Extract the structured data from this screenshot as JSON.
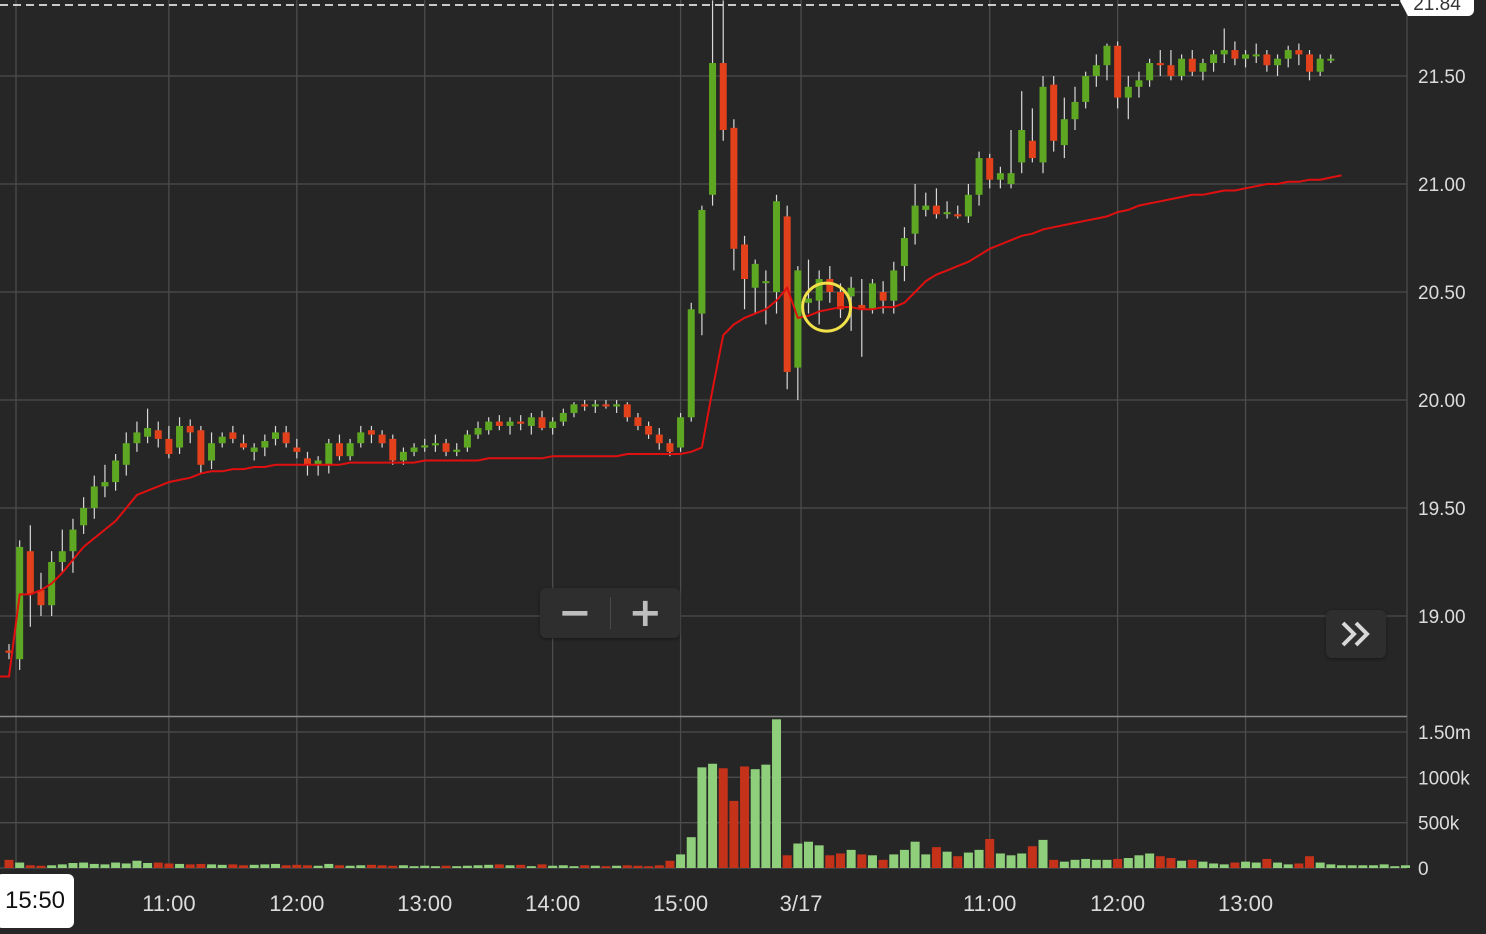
{
  "price_axis": {
    "ticks": [
      {
        "value": 21.5,
        "label": "21.50"
      },
      {
        "value": 21.0,
        "label": "21.00"
      },
      {
        "value": 20.5,
        "label": "20.50"
      },
      {
        "value": 20.0,
        "label": "20.00"
      },
      {
        "value": 19.5,
        "label": "19.50"
      },
      {
        "value": 19.0,
        "label": "19.00"
      }
    ],
    "current_price_label": "21.84"
  },
  "volume_axis": {
    "ticks": [
      {
        "value": 1500000,
        "label": "1.50m"
      },
      {
        "value": 1000000,
        "label": "1000k"
      },
      {
        "value": 500000,
        "label": "500k"
      },
      {
        "value": 0,
        "label": "0"
      }
    ]
  },
  "time_axis": {
    "cursor_label": "15:50",
    "labels": [
      {
        "label": "11:00",
        "slot": 15
      },
      {
        "label": "12:00",
        "slot": 27
      },
      {
        "label": "13:00",
        "slot": 39
      },
      {
        "label": "14:00",
        "slot": 51
      },
      {
        "label": "15:00",
        "slot": 63
      },
      {
        "label": "3/17",
        "slot": 74.3
      },
      {
        "label": "11:00",
        "slot": 92
      },
      {
        "label": "12:00",
        "slot": 104
      },
      {
        "label": "13:00",
        "slot": 116
      }
    ]
  },
  "controls": {
    "zoom_out": "−",
    "zoom_in": "+"
  },
  "colors": {
    "up": "#5ea722",
    "down": "#e2411b",
    "vol_up": "#8fcf7c",
    "vol_down": "#c4321a",
    "vwap": "#e01010",
    "grid": "#4c4c4c",
    "highlight_circle": "#f0e04a"
  },
  "chart_data": {
    "type": "candlestick",
    "price_range": [
      18.5,
      21.85
    ],
    "volume_range": [
      0,
      1650000
    ],
    "grid": true,
    "highlight": {
      "slot": 76.7,
      "price": 20.43
    },
    "candles": [
      [
        18.84,
        18.87,
        18.8,
        18.83
      ],
      [
        18.8,
        19.35,
        18.75,
        19.32
      ],
      [
        19.3,
        19.42,
        18.95,
        19.1
      ],
      [
        19.12,
        19.2,
        19.0,
        19.05
      ],
      [
        19.05,
        19.3,
        19.0,
        19.25
      ],
      [
        19.25,
        19.4,
        19.2,
        19.3
      ],
      [
        19.3,
        19.45,
        19.2,
        19.4
      ],
      [
        19.42,
        19.55,
        19.38,
        19.5
      ],
      [
        19.5,
        19.65,
        19.45,
        19.6
      ],
      [
        19.6,
        19.7,
        19.55,
        19.62
      ],
      [
        19.62,
        19.75,
        19.58,
        19.72
      ],
      [
        19.7,
        19.85,
        19.65,
        19.8
      ],
      [
        19.8,
        19.9,
        19.76,
        19.85
      ],
      [
        19.83,
        19.96,
        19.8,
        19.87
      ],
      [
        19.86,
        19.9,
        19.78,
        19.82
      ],
      [
        19.82,
        19.88,
        19.73,
        19.75
      ],
      [
        19.78,
        19.92,
        19.75,
        19.88
      ],
      [
        19.88,
        19.91,
        19.8,
        19.85
      ],
      [
        19.86,
        19.88,
        19.66,
        19.7
      ],
      [
        19.72,
        19.85,
        19.68,
        19.8
      ],
      [
        19.8,
        19.85,
        19.78,
        19.83
      ],
      [
        19.85,
        19.88,
        19.8,
        19.82
      ],
      [
        19.8,
        19.84,
        19.77,
        19.78
      ],
      [
        19.76,
        19.8,
        19.72,
        19.78
      ],
      [
        19.78,
        19.84,
        19.74,
        19.81
      ],
      [
        19.82,
        19.88,
        19.79,
        19.85
      ],
      [
        19.85,
        19.88,
        19.78,
        19.8
      ],
      [
        19.78,
        19.82,
        19.73,
        19.76
      ],
      [
        19.73,
        19.76,
        19.65,
        19.7
      ],
      [
        19.7,
        19.74,
        19.65,
        19.72
      ],
      [
        19.7,
        19.82,
        19.66,
        19.8
      ],
      [
        19.8,
        19.84,
        19.72,
        19.74
      ],
      [
        19.74,
        19.82,
        19.72,
        19.8
      ],
      [
        19.8,
        19.88,
        19.78,
        19.85
      ],
      [
        19.86,
        19.88,
        19.8,
        19.84
      ],
      [
        19.84,
        19.86,
        19.78,
        19.8
      ],
      [
        19.82,
        19.84,
        19.7,
        19.72
      ],
      [
        19.72,
        19.78,
        19.7,
        19.76
      ],
      [
        19.76,
        19.8,
        19.74,
        19.78
      ],
      [
        19.78,
        19.82,
        19.76,
        19.79
      ],
      [
        19.79,
        19.84,
        19.76,
        19.8
      ],
      [
        19.8,
        19.82,
        19.74,
        19.76
      ],
      [
        19.76,
        19.8,
        19.74,
        19.77
      ],
      [
        19.78,
        19.86,
        19.76,
        19.84
      ],
      [
        19.84,
        19.9,
        19.82,
        19.87
      ],
      [
        19.86,
        19.92,
        19.84,
        19.9
      ],
      [
        19.9,
        19.93,
        19.86,
        19.88
      ],
      [
        19.88,
        19.92,
        19.84,
        19.9
      ],
      [
        19.9,
        19.93,
        19.86,
        19.89
      ],
      [
        19.88,
        19.94,
        19.84,
        19.92
      ],
      [
        19.92,
        19.95,
        19.86,
        19.87
      ],
      [
        19.87,
        19.92,
        19.84,
        19.9
      ],
      [
        19.9,
        19.96,
        19.88,
        19.94
      ],
      [
        19.94,
        19.99,
        19.92,
        19.98
      ],
      [
        19.98,
        20.0,
        19.95,
        19.97
      ],
      [
        19.97,
        20.0,
        19.94,
        19.98
      ],
      [
        19.98,
        20.0,
        19.96,
        19.97
      ],
      [
        19.97,
        20.0,
        19.94,
        19.98
      ],
      [
        19.98,
        19.99,
        19.9,
        19.92
      ],
      [
        19.92,
        19.94,
        19.86,
        19.88
      ],
      [
        19.88,
        19.9,
        19.82,
        19.84
      ],
      [
        19.84,
        19.87,
        19.77,
        19.8
      ],
      [
        19.8,
        19.82,
        19.74,
        19.76
      ],
      [
        19.78,
        19.94,
        19.76,
        19.92
      ],
      [
        19.92,
        20.45,
        19.9,
        20.42
      ],
      [
        20.4,
        20.9,
        20.3,
        20.88
      ],
      [
        20.95,
        21.85,
        20.9,
        21.56
      ],
      [
        21.56,
        21.85,
        21.2,
        21.25
      ],
      [
        21.26,
        21.3,
        20.6,
        20.7
      ],
      [
        20.72,
        20.76,
        20.42,
        20.56
      ],
      [
        20.52,
        20.65,
        20.4,
        20.63
      ],
      [
        20.55,
        20.6,
        20.35,
        20.55
      ],
      [
        20.5,
        20.95,
        20.4,
        20.92
      ],
      [
        20.85,
        20.9,
        20.05,
        20.13
      ],
      [
        20.15,
        20.62,
        20.0,
        20.6
      ],
      [
        20.45,
        20.65,
        20.4,
        20.47
      ],
      [
        20.46,
        20.6,
        20.35,
        20.56
      ],
      [
        20.56,
        20.62,
        20.45,
        20.5
      ],
      [
        20.5,
        20.54,
        20.38,
        20.42
      ],
      [
        20.48,
        20.57,
        20.32,
        20.52
      ],
      [
        20.44,
        20.56,
        20.2,
        20.42
      ],
      [
        20.42,
        20.56,
        20.4,
        20.54
      ],
      [
        20.5,
        20.55,
        20.4,
        20.46
      ],
      [
        20.46,
        20.64,
        20.4,
        20.6
      ],
      [
        20.62,
        20.8,
        20.55,
        20.75
      ],
      [
        20.77,
        21.0,
        20.72,
        20.9
      ],
      [
        20.88,
        20.96,
        20.85,
        20.9
      ],
      [
        20.9,
        20.98,
        20.84,
        20.86
      ],
      [
        20.86,
        20.92,
        20.84,
        20.87
      ],
      [
        20.86,
        20.9,
        20.84,
        20.85
      ],
      [
        20.85,
        21.0,
        20.82,
        20.95
      ],
      [
        20.95,
        21.15,
        20.9,
        21.12
      ],
      [
        21.12,
        21.14,
        20.98,
        21.02
      ],
      [
        21.02,
        21.08,
        20.98,
        21.05
      ],
      [
        21.0,
        21.25,
        20.98,
        21.05
      ],
      [
        21.1,
        21.43,
        21.05,
        21.25
      ],
      [
        21.2,
        21.35,
        21.1,
        21.12
      ],
      [
        21.1,
        21.5,
        21.05,
        21.45
      ],
      [
        21.46,
        21.5,
        21.15,
        21.2
      ],
      [
        21.18,
        21.4,
        21.12,
        21.3
      ],
      [
        21.3,
        21.45,
        21.25,
        21.38
      ],
      [
        21.38,
        21.52,
        21.35,
        21.5
      ],
      [
        21.5,
        21.6,
        21.45,
        21.55
      ],
      [
        21.55,
        21.65,
        21.48,
        21.64
      ],
      [
        21.64,
        21.66,
        21.35,
        21.4
      ],
      [
        21.4,
        21.5,
        21.3,
        21.45
      ],
      [
        21.45,
        21.52,
        21.4,
        21.48
      ],
      [
        21.48,
        21.58,
        21.45,
        21.56
      ],
      [
        21.56,
        21.62,
        21.5,
        21.55
      ],
      [
        21.55,
        21.62,
        21.48,
        21.5
      ],
      [
        21.5,
        21.6,
        21.48,
        21.58
      ],
      [
        21.58,
        21.62,
        21.5,
        21.52
      ],
      [
        21.52,
        21.58,
        21.48,
        21.56
      ],
      [
        21.56,
        21.62,
        21.52,
        21.6
      ],
      [
        21.6,
        21.72,
        21.56,
        21.62
      ],
      [
        21.62,
        21.66,
        21.55,
        21.58
      ],
      [
        21.58,
        21.62,
        21.54,
        21.6
      ],
      [
        21.6,
        21.65,
        21.56,
        21.6
      ],
      [
        21.6,
        21.62,
        21.52,
        21.55
      ],
      [
        21.55,
        21.6,
        21.5,
        21.58
      ],
      [
        21.58,
        21.64,
        21.54,
        21.62
      ],
      [
        21.62,
        21.65,
        21.55,
        21.6
      ],
      [
        21.6,
        21.62,
        21.48,
        21.52
      ],
      [
        21.52,
        21.6,
        21.5,
        21.58
      ],
      [
        21.58,
        21.6,
        21.56,
        21.58
      ]
    ],
    "volumes": [
      90000,
      60000,
      30000,
      25000,
      30000,
      40000,
      55000,
      60000,
      45000,
      40000,
      60000,
      50000,
      80000,
      55000,
      60000,
      50000,
      45000,
      40000,
      45000,
      40000,
      35000,
      40000,
      30000,
      35000,
      40000,
      45000,
      30000,
      35000,
      30000,
      25000,
      45000,
      30000,
      25000,
      30000,
      35000,
      30000,
      25000,
      30000,
      20000,
      25000,
      20000,
      25000,
      20000,
      25000,
      30000,
      35000,
      40000,
      30000,
      35000,
      20000,
      40000,
      25000,
      30000,
      20000,
      30000,
      25000,
      20000,
      25000,
      30000,
      25000,
      20000,
      30000,
      80000,
      150000,
      340000,
      1110000,
      1150000,
      1100000,
      740000,
      1120000,
      1090000,
      1140000,
      1640000,
      140000,
      270000,
      290000,
      250000,
      140000,
      160000,
      200000,
      150000,
      140000,
      90000,
      150000,
      200000,
      290000,
      150000,
      230000,
      180000,
      130000,
      170000,
      200000,
      320000,
      160000,
      140000,
      160000,
      240000,
      310000,
      90000,
      70000,
      90000,
      100000,
      90000,
      90000,
      100000,
      110000,
      140000,
      160000,
      130000,
      110000,
      80000,
      90000,
      70000,
      50000,
      40000,
      60000,
      70000,
      60000,
      100000,
      60000,
      40000,
      50000,
      130000,
      60000,
      40000,
      30000,
      30000,
      30000,
      30000,
      40000,
      20000,
      30000
    ],
    "vwap": [
      18.72,
      19.1,
      19.1,
      19.12,
      19.15,
      19.2,
      19.26,
      19.32,
      19.36,
      19.4,
      19.44,
      19.5,
      19.56,
      19.58,
      19.6,
      19.62,
      19.63,
      19.64,
      19.66,
      19.67,
      19.67,
      19.68,
      19.68,
      19.69,
      19.69,
      19.7,
      19.7,
      19.7,
      19.7,
      19.7,
      19.7,
      19.7,
      19.71,
      19.71,
      19.71,
      19.71,
      19.71,
      19.71,
      19.71,
      19.72,
      19.72,
      19.72,
      19.72,
      19.72,
      19.72,
      19.73,
      19.73,
      19.73,
      19.73,
      19.73,
      19.73,
      19.74,
      19.74,
      19.74,
      19.74,
      19.74,
      19.74,
      19.74,
      19.75,
      19.75,
      19.75,
      19.75,
      19.75,
      19.75,
      19.76,
      19.78,
      20.05,
      20.3,
      20.35,
      20.38,
      20.4,
      20.42,
      20.46,
      20.52,
      20.38,
      20.39,
      20.41,
      20.42,
      20.43,
      20.43,
      20.42,
      20.42,
      20.43,
      20.43,
      20.45,
      20.5,
      20.55,
      20.58,
      20.6,
      20.62,
      20.64,
      20.67,
      20.7,
      20.72,
      20.74,
      20.76,
      20.77,
      20.79,
      20.8,
      20.81,
      20.82,
      20.83,
      20.84,
      20.85,
      20.87,
      20.88,
      20.9,
      20.91,
      20.92,
      20.93,
      20.94,
      20.95,
      20.95,
      20.96,
      20.97,
      20.97,
      20.98,
      20.99,
      21.0,
      21.0,
      21.01,
      21.01,
      21.02,
      21.02,
      21.03,
      21.04
    ]
  }
}
